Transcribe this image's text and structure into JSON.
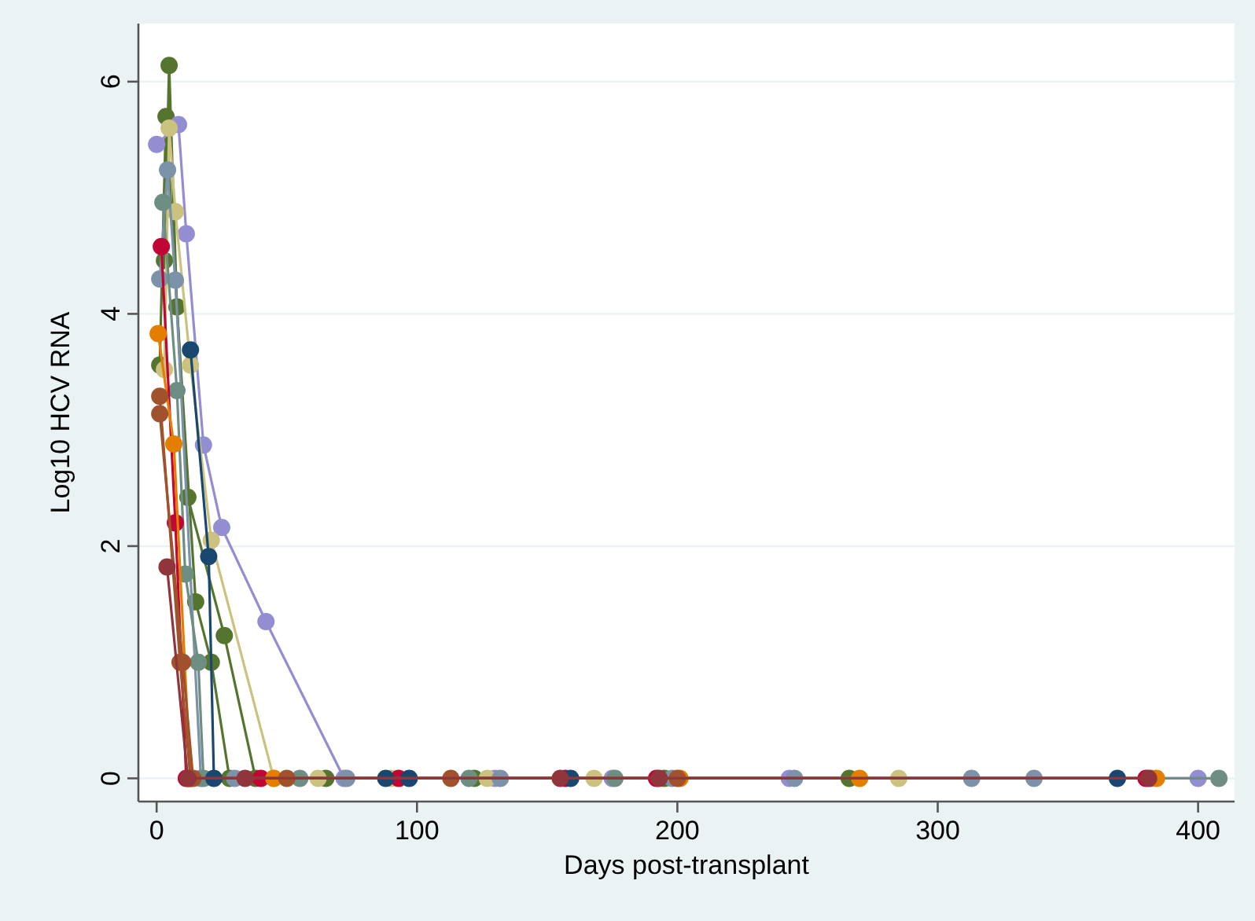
{
  "chart_data": {
    "type": "line",
    "xlabel": "Days post-transplant",
    "ylabel": "Log10 HCV RNA",
    "xlim": [
      -7,
      414
    ],
    "ylim": [
      -0.2,
      6.5
    ],
    "xticks": [
      0,
      100,
      200,
      300,
      400
    ],
    "yticks": [
      0,
      2,
      4,
      6
    ],
    "grid": "y",
    "marker": "circle",
    "line_style": "solid",
    "series": [
      {
        "color": "#55752f",
        "x": [
          3,
          4.8,
          7.8,
          15,
          21,
          28,
          65,
          195
        ],
        "values": [
          4.46,
          6.14,
          4.06,
          1.52,
          1.0,
          0,
          0,
          0
        ]
      },
      {
        "color": "#55752f",
        "x": [
          1.2,
          3.6,
          12,
          26,
          38,
          122,
          266
        ],
        "values": [
          3.56,
          5.7,
          2.42,
          1.23,
          0,
          0,
          0
        ]
      },
      {
        "color": "#938dd2",
        "x": [
          0,
          8.4,
          11.4,
          18,
          25,
          42,
          72,
          130,
          175,
          243,
          400
        ],
        "values": [
          5.46,
          5.63,
          4.69,
          2.87,
          2.16,
          1.35,
          0,
          0,
          0,
          0,
          0
        ]
      },
      {
        "color": "#cac27e",
        "x": [
          3,
          4.8,
          7.2,
          13,
          21,
          45,
          62,
          90,
          127,
          168,
          285
        ],
        "values": [
          3.52,
          5.6,
          4.88,
          3.56,
          2.05,
          0,
          0,
          0,
          0,
          0,
          0
        ]
      },
      {
        "color": "#7b92a8",
        "x": [
          1.2,
          4.2,
          7.2,
          17,
          30,
          73,
          132,
          198,
          245,
          313,
          337,
          382
        ],
        "values": [
          4.3,
          5.24,
          4.29,
          0,
          0,
          0,
          0,
          0,
          0,
          0,
          0,
          0
        ]
      },
      {
        "color": "#6e8e84",
        "x": [
          2.4,
          7.8,
          11,
          16,
          18,
          55,
          120,
          176,
          408
        ],
        "values": [
          4.96,
          3.34,
          1.76,
          1.0,
          0,
          0,
          0,
          0,
          0
        ]
      },
      {
        "color": "#c10534",
        "x": [
          1.8,
          7.2,
          11.4,
          40,
          93,
          157,
          192,
          380
        ],
        "values": [
          4.58,
          2.2,
          0,
          0,
          0,
          0,
          0,
          0
        ]
      },
      {
        "color": "#e37e00",
        "x": [
          0.6,
          6.6,
          13,
          45,
          201,
          270,
          384
        ],
        "values": [
          3.83,
          2.88,
          0,
          0,
          0,
          0,
          0
        ]
      },
      {
        "color": "#1a476f",
        "x": [
          13,
          20,
          22,
          88,
          97,
          159,
          369
        ],
        "values": [
          3.69,
          1.91,
          0,
          0,
          0,
          0,
          0
        ]
      },
      {
        "color": "#a0522d",
        "x": [
          1.2,
          9,
          13,
          50,
          113,
          200
        ],
        "values": [
          3.29,
          1.0,
          0,
          0,
          0,
          0
        ]
      },
      {
        "color": "#a0522d",
        "x": [
          1.2,
          10,
          14
        ],
        "values": [
          3.14,
          1.0,
          0
        ]
      },
      {
        "color": "#90353b",
        "x": [
          4,
          12,
          34,
          155,
          193,
          381
        ],
        "values": [
          1.82,
          0,
          0,
          0,
          0,
          0
        ]
      }
    ]
  }
}
